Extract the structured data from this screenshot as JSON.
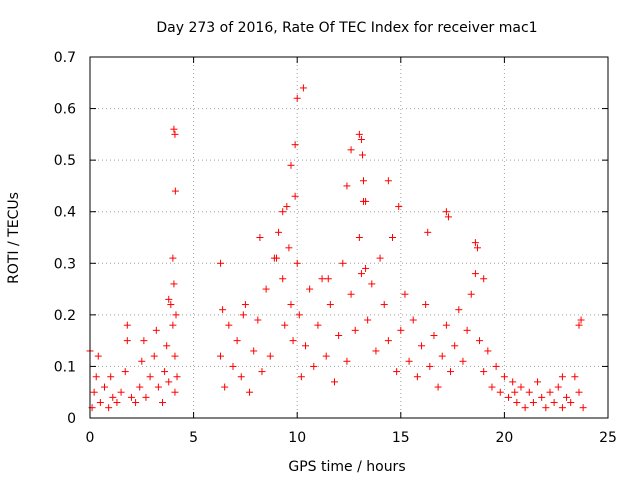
{
  "chart_data": {
    "type": "scatter",
    "title": "Day 273 of 2016, Rate Of TEC Index for receiver mac1",
    "xlabel": "GPS time / hours",
    "ylabel": "ROTI / TECUs",
    "xlim": [
      0,
      25
    ],
    "ylim": [
      0,
      0.7
    ],
    "xticks": [
      0,
      5,
      10,
      15,
      20,
      25
    ],
    "yticks": [
      0,
      0.1,
      0.2,
      0.3,
      0.4,
      0.5,
      0.6,
      0.7
    ],
    "xtick_labels": [
      "0",
      "5",
      "10",
      "15",
      "20",
      "25"
    ],
    "ytick_labels": [
      "0",
      "0.1",
      "0.2",
      "0.3",
      "0.4",
      "0.5",
      "0.6",
      "0.7"
    ],
    "grid": true,
    "marker": "+",
    "colors": {
      "points": "#ff0000",
      "grid": "#a0a0a0",
      "axes": "#000000"
    },
    "series": [
      {
        "name": "ROTI",
        "x": [
          0.1,
          0.2,
          0.3,
          0.5,
          0.7,
          0.9,
          1.1,
          1.3,
          1.5,
          1.7,
          1.8,
          2.0,
          2.2,
          2.4,
          2.5,
          2.7,
          2.9,
          3.1,
          3.3,
          3.5,
          3.6,
          3.7,
          3.8,
          3.9,
          4.0,
          4.0,
          4.05,
          4.1,
          4.1,
          4.15,
          4.2,
          6.3,
          6.4,
          6.5,
          6.7,
          6.9,
          7.1,
          7.3,
          7.5,
          7.7,
          7.9,
          8.1,
          8.3,
          8.5,
          8.7,
          8.9,
          9.1,
          9.3,
          9.4,
          9.5,
          9.6,
          9.7,
          9.8,
          9.9,
          10.0,
          10.1,
          10.2,
          10.4,
          10.6,
          10.8,
          11.0,
          11.2,
          11.4,
          11.6,
          11.8,
          12.0,
          12.2,
          12.4,
          12.6,
          12.8,
          13.0,
          13.1,
          13.2,
          13.3,
          13.4,
          13.6,
          13.8,
          14.0,
          14.2,
          14.4,
          14.6,
          14.8,
          15.0,
          15.2,
          15.4,
          15.6,
          15.8,
          16.0,
          16.2,
          16.4,
          16.6,
          16.8,
          17.0,
          17.2,
          17.4,
          17.6,
          17.8,
          18.0,
          18.2,
          18.4,
          18.6,
          18.8,
          19.0,
          19.2,
          19.4,
          19.6,
          19.8,
          20.0,
          20.2,
          20.4,
          20.6,
          20.8,
          21.0,
          21.2,
          21.4,
          21.6,
          21.8,
          22.0,
          22.2,
          22.4,
          22.6,
          22.8,
          23.0,
          23.2,
          23.4,
          23.6,
          23.8,
          0.0,
          0.4,
          1.0,
          1.8,
          2.6,
          3.2,
          3.8,
          4.05,
          4.1,
          4.12,
          6.3,
          7.4,
          8.2,
          9.0,
          9.3,
          9.7,
          9.9,
          10.0,
          10.3,
          11.5,
          12.4,
          12.6,
          13.0,
          13.1,
          13.15,
          13.2,
          13.3,
          14.4,
          14.9,
          16.3,
          17.2,
          17.3,
          18.6,
          18.7,
          19.0,
          20.5,
          22.8,
          23.6,
          23.7
        ],
        "y": [
          0.02,
          0.05,
          0.08,
          0.03,
          0.06,
          0.02,
          0.04,
          0.03,
          0.05,
          0.09,
          0.15,
          0.04,
          0.03,
          0.06,
          0.11,
          0.04,
          0.08,
          0.12,
          0.06,
          0.03,
          0.09,
          0.14,
          0.07,
          0.22,
          0.31,
          0.18,
          0.26,
          0.12,
          0.05,
          0.2,
          0.08,
          0.12,
          0.21,
          0.06,
          0.18,
          0.1,
          0.15,
          0.08,
          0.22,
          0.05,
          0.13,
          0.19,
          0.09,
          0.25,
          0.12,
          0.31,
          0.36,
          0.27,
          0.18,
          0.41,
          0.33,
          0.22,
          0.15,
          0.43,
          0.3,
          0.2,
          0.08,
          0.14,
          0.25,
          0.1,
          0.18,
          0.27,
          0.12,
          0.22,
          0.07,
          0.16,
          0.3,
          0.11,
          0.24,
          0.17,
          0.35,
          0.28,
          0.42,
          0.29,
          0.19,
          0.26,
          0.13,
          0.31,
          0.22,
          0.15,
          0.35,
          0.09,
          0.17,
          0.24,
          0.11,
          0.19,
          0.08,
          0.14,
          0.22,
          0.1,
          0.16,
          0.06,
          0.12,
          0.18,
          0.09,
          0.14,
          0.21,
          0.11,
          0.17,
          0.24,
          0.28,
          0.15,
          0.09,
          0.13,
          0.06,
          0.1,
          0.05,
          0.08,
          0.04,
          0.07,
          0.03,
          0.06,
          0.02,
          0.05,
          0.03,
          0.07,
          0.04,
          0.02,
          0.05,
          0.03,
          0.06,
          0.02,
          0.04,
          0.03,
          0.08,
          0.05,
          0.02,
          0.13,
          0.12,
          0.08,
          0.18,
          0.15,
          0.17,
          0.23,
          0.56,
          0.55,
          0.44,
          0.3,
          0.2,
          0.35,
          0.31,
          0.4,
          0.49,
          0.53,
          0.62,
          0.64,
          0.27,
          0.45,
          0.52,
          0.55,
          0.54,
          0.51,
          0.46,
          0.42,
          0.46,
          0.41,
          0.36,
          0.4,
          0.39,
          0.34,
          0.33,
          0.27,
          0.05,
          0.08,
          0.18,
          0.19
        ]
      }
    ]
  }
}
